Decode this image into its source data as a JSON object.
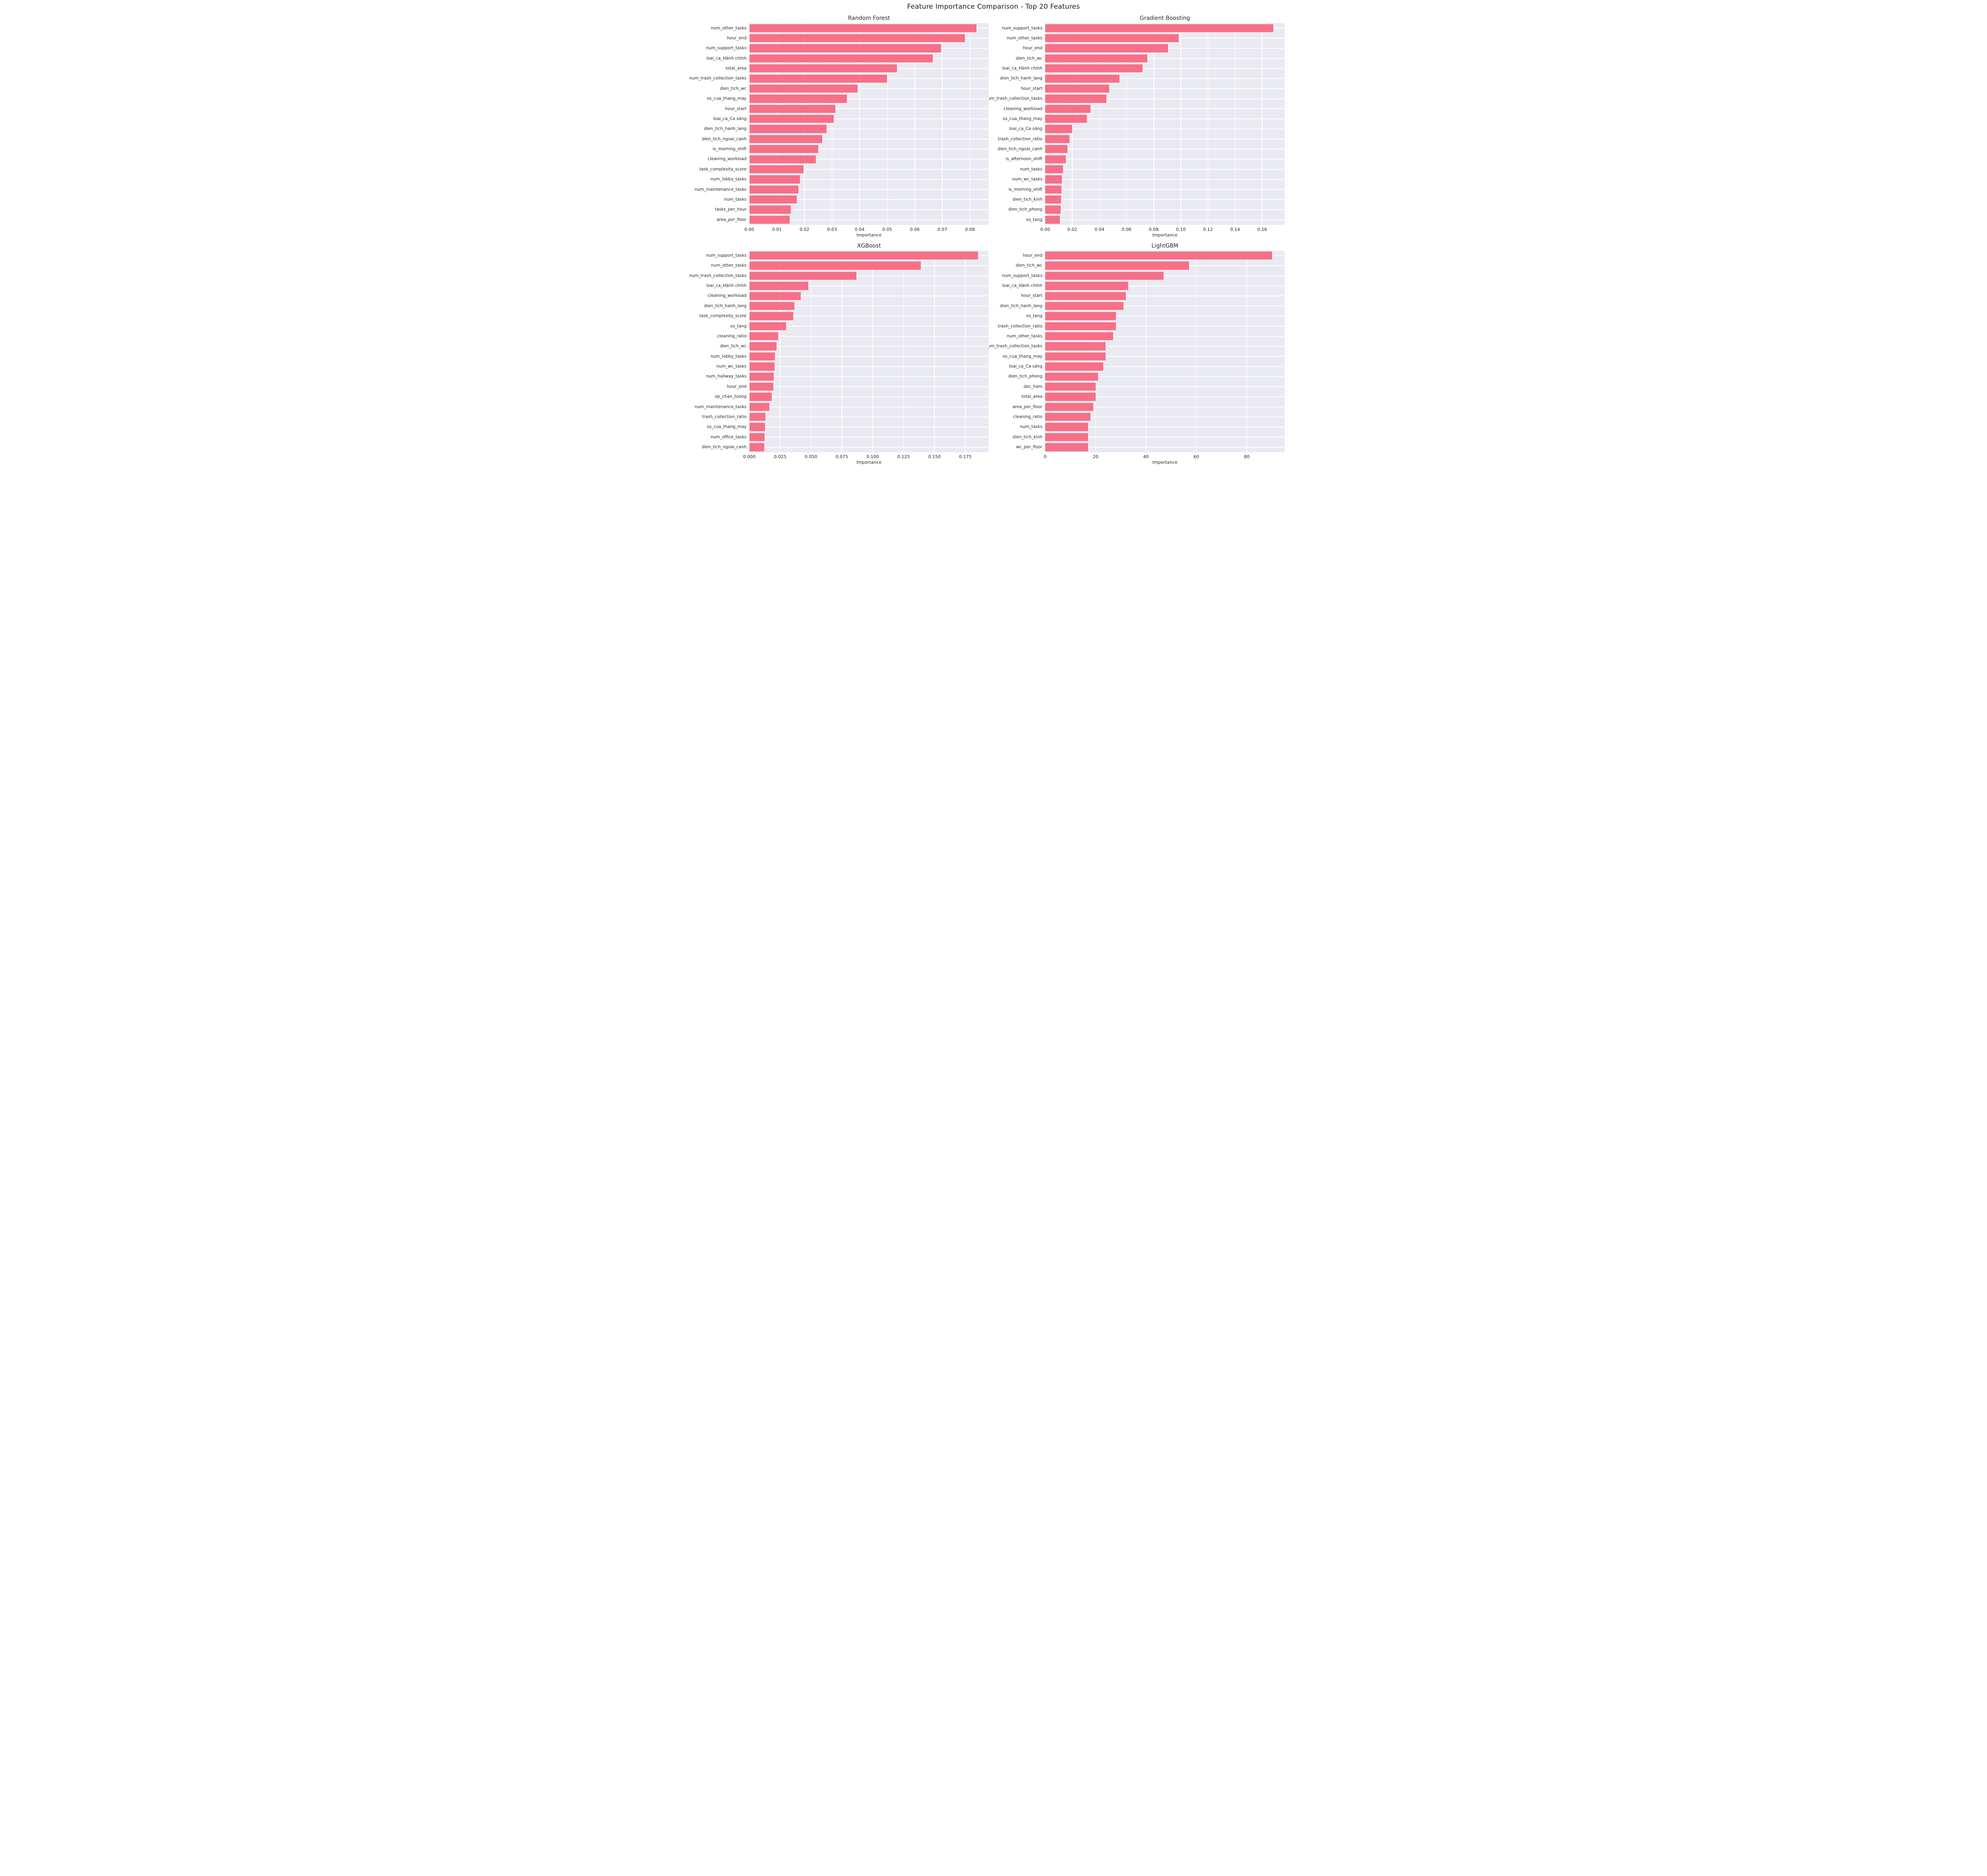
{
  "page_title": "Feature Importance Comparison - Top 20 Features",
  "colors": {
    "bar": "#f67088",
    "plot_bg": "#eaeaf2",
    "grid": "#ffffff",
    "text": "#262626",
    "figure_bg": "#ffffff"
  },
  "chart_data": [
    {
      "type": "bar",
      "orientation": "horizontal",
      "title": "Random Forest",
      "xlabel": "Importance",
      "grid": true,
      "legend": false,
      "xlim": [
        0,
        0.0868
      ],
      "xticks": [
        0,
        0.01,
        0.02,
        0.03,
        0.04,
        0.05,
        0.06,
        0.07,
        0.08
      ],
      "xtick_labels": [
        "0.00",
        "0.01",
        "0.02",
        "0.03",
        "0.04",
        "0.05",
        "0.06",
        "0.07",
        "0.08"
      ],
      "categories": [
        "num_other_tasks",
        "hour_end",
        "num_support_tasks",
        "loai_ca_Hành chính",
        "total_area",
        "num_trash_collection_tasks",
        "dien_tich_wc",
        "so_cua_thang_may",
        "hour_start",
        "loai_ca_Ca sáng",
        "dien_tich_hanh_lang",
        "dien_tich_ngoai_canh",
        "is_morning_shift",
        "cleaning_workload",
        "task_complexity_score",
        "num_lobby_tasks",
        "num_maintenance_tasks",
        "num_tasks",
        "tasks_per_hour",
        "area_per_floor"
      ],
      "values": [
        0.0823,
        0.0781,
        0.0695,
        0.0665,
        0.0535,
        0.0499,
        0.0393,
        0.0353,
        0.0312,
        0.0306,
        0.028,
        0.0265,
        0.025,
        0.0241,
        0.0196,
        0.0184,
        0.0178,
        0.0172,
        0.0151,
        0.0146
      ]
    },
    {
      "type": "bar",
      "orientation": "horizontal",
      "title": "Gradient Boosting",
      "xlabel": "Importance",
      "grid": true,
      "legend": false,
      "xlim": [
        0,
        0.1765
      ],
      "xticks": [
        0,
        0.02,
        0.04,
        0.06,
        0.08,
        0.1,
        0.12,
        0.14,
        0.16
      ],
      "xtick_labels": [
        "0.00",
        "0.02",
        "0.04",
        "0.06",
        "0.08",
        "0.10",
        "0.12",
        "0.14",
        "0.16"
      ],
      "categories": [
        "num_support_tasks",
        "num_other_tasks",
        "hour_end",
        "dien_tich_wc",
        "loai_ca_Hành chính",
        "dien_tich_hanh_lang",
        "hour_start",
        "num_trash_collection_tasks",
        "cleaning_workload",
        "so_cua_thang_may",
        "loai_ca_Ca sáng",
        "trash_collection_ratio",
        "dien_tich_ngoai_canh",
        "is_afternoon_shift",
        "num_tasks",
        "num_wc_tasks",
        "is_morning_shift",
        "dien_tich_kinh",
        "dien_tich_phong",
        "so_tang"
      ],
      "values": [
        0.1682,
        0.0984,
        0.0904,
        0.0754,
        0.0719,
        0.0549,
        0.0472,
        0.045,
        0.0335,
        0.0309,
        0.02,
        0.0178,
        0.0163,
        0.0153,
        0.0133,
        0.0122,
        0.012,
        0.0117,
        0.0115,
        0.0109
      ]
    },
    {
      "type": "bar",
      "orientation": "horizontal",
      "title": "XGBoost",
      "xlabel": "Importance",
      "grid": true,
      "legend": false,
      "xlim": [
        0,
        0.194
      ],
      "xticks": [
        0,
        0.025,
        0.05,
        0.075,
        0.1,
        0.125,
        0.15,
        0.175
      ],
      "xtick_labels": [
        "0.000",
        "0.025",
        "0.050",
        "0.075",
        "0.100",
        "0.125",
        "0.150",
        "0.175"
      ],
      "categories": [
        "num_support_tasks",
        "num_other_tasks",
        "num_trash_collection_tasks",
        "loai_ca_Hành chính",
        "cleaning_workload",
        "dien_tich_hanh_lang",
        "task_complexity_score",
        "so_tang",
        "cleaning_ratio",
        "dien_tich_wc",
        "num_lobby_tasks",
        "num_wc_tasks",
        "num_hallway_tasks",
        "hour_end",
        "op_chan_tuong",
        "num_maintenance_tasks",
        "trash_collection_ratio",
        "so_cua_thang_may",
        "num_office_tasks",
        "dien_tich_ngoai_canh"
      ],
      "values": [
        0.1852,
        0.139,
        0.0868,
        0.0478,
        0.0417,
        0.0366,
        0.0357,
        0.0299,
        0.0235,
        0.0222,
        0.0209,
        0.0205,
        0.0198,
        0.0195,
        0.0181,
        0.0163,
        0.013,
        0.0127,
        0.0123,
        0.0121
      ]
    },
    {
      "type": "bar",
      "orientation": "horizontal",
      "title": "LightGBM",
      "xlabel": "Importance",
      "grid": true,
      "legend": false,
      "xlim": [
        0,
        95
      ],
      "xticks": [
        0,
        20,
        40,
        60,
        80
      ],
      "xtick_labels": [
        "0",
        "20",
        "40",
        "60",
        "80"
      ],
      "categories": [
        "hour_end",
        "dien_tich_wc",
        "num_support_tasks",
        "loai_ca_Hành chính",
        "hour_start",
        "dien_tich_hanh_lang",
        "so_tang",
        "trash_collection_ratio",
        "num_other_tasks",
        "num_trash_collection_tasks",
        "so_cua_thang_may",
        "loai_ca_Ca sáng",
        "dien_tich_phong",
        "doc_ham",
        "total_area",
        "area_per_floor",
        "cleaning_ratio",
        "num_tasks",
        "dien_tich_kinh",
        "wc_per_floor"
      ],
      "values": [
        90,
        57,
        47,
        33,
        32,
        31,
        28,
        28,
        27,
        24,
        24,
        23,
        21,
        20,
        20,
        19,
        18,
        17,
        17,
        17
      ]
    }
  ]
}
